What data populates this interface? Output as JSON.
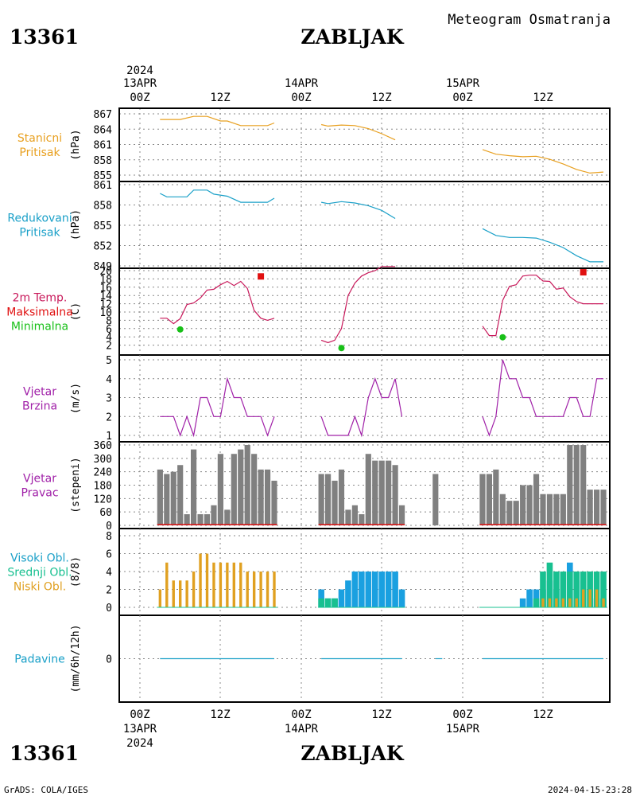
{
  "header": {
    "station_id": "13361",
    "station_name": "ZABLJAK",
    "product_title": "Meteogram Osmatranja"
  },
  "footer": {
    "station_id": "13361",
    "station_name": "ZABLJAK",
    "credit": "GrADS: COLA/IGES",
    "timestamp": "2024-04-15-23:28"
  },
  "time_axis": {
    "year": "2024",
    "day_labels": [
      "13APR",
      "14APR",
      "15APR"
    ],
    "hour_labels": [
      "00Z",
      "12Z",
      "00Z",
      "12Z",
      "00Z",
      "12Z"
    ],
    "hours_start": 0,
    "hours_end": 70
  },
  "chart_data": [
    {
      "id": "station_pressure",
      "type": "line",
      "labels": [
        "Stanicni",
        "Pritisak"
      ],
      "label_colors": [
        "#e8a020",
        "#e8a020"
      ],
      "ylabel": "(hPa)",
      "ylim": [
        855,
        867
      ],
      "yticks": [
        855,
        858,
        861,
        864,
        867
      ],
      "color": "#e8a020",
      "segments": [
        {
          "x": [
            3,
            6,
            8,
            10,
            12,
            13,
            15,
            17,
            19,
            20
          ],
          "y": [
            865.9,
            865.9,
            866.5,
            866.5,
            865.6,
            865.6,
            864.7,
            864.7,
            864.7,
            865.2
          ]
        },
        {
          "x": [
            27,
            28,
            30,
            32,
            34,
            36,
            38
          ],
          "y": [
            864.9,
            864.6,
            864.8,
            864.7,
            864.1,
            863.1,
            861.9
          ]
        },
        {
          "x": [
            51,
            53,
            55,
            57,
            59,
            61,
            63,
            65,
            67,
            69
          ],
          "y": [
            860.0,
            859.1,
            858.8,
            858.6,
            858.7,
            858.1,
            857.2,
            856.1,
            855.4,
            855.6
          ]
        }
      ]
    },
    {
      "id": "msl_pressure",
      "type": "line",
      "labels": [
        "Redukovani",
        "Pritisak"
      ],
      "label_colors": [
        "#1aa0c8",
        "#1aa0c8"
      ],
      "ylabel": "(hPa)",
      "ylim": [
        849,
        861
      ],
      "yticks": [
        849,
        852,
        855,
        858,
        861
      ],
      "color": "#1aa0c8",
      "segments": [
        {
          "x": [
            3,
            4,
            7,
            8,
            10,
            11,
            13,
            15,
            17,
            19,
            20
          ],
          "y": [
            859.7,
            859.2,
            859.2,
            860.2,
            860.2,
            859.6,
            859.3,
            858.4,
            858.4,
            858.4,
            859.0
          ]
        },
        {
          "x": [
            27,
            28,
            30,
            32,
            34,
            36,
            38
          ],
          "y": [
            858.4,
            858.2,
            858.5,
            858.3,
            857.9,
            857.2,
            856.0
          ]
        },
        {
          "x": [
            51,
            53,
            55,
            57,
            59,
            61,
            63,
            65,
            67,
            69
          ],
          "y": [
            854.5,
            853.5,
            853.2,
            853.2,
            853.1,
            852.5,
            851.7,
            850.5,
            849.6,
            849.6
          ]
        }
      ]
    },
    {
      "id": "temperature",
      "type": "line",
      "labels": [
        "2m Temp.",
        "Maksimalna",
        "Minimalna"
      ],
      "label_colors": [
        "#c8185a",
        "#e01010",
        "#18c018"
      ],
      "ylabel": "(C)",
      "ylim": [
        0,
        20
      ],
      "yticks": [
        2,
        4,
        6,
        8,
        10,
        12,
        14,
        16,
        18,
        20
      ],
      "color": "#c8185a",
      "segments": [
        {
          "x": [
            3,
            4,
            5,
            6,
            7,
            8,
            9,
            10,
            11,
            12,
            13,
            14,
            15,
            16,
            17,
            18,
            19,
            20
          ],
          "y": [
            8.5,
            8.5,
            7.2,
            8.4,
            11.8,
            12.2,
            13.4,
            15.3,
            15.5,
            16.6,
            17.4,
            16.4,
            17.4,
            15.7,
            10.4,
            8.5,
            8.0,
            8.5
          ]
        },
        {
          "x": [
            27,
            28,
            29,
            30,
            31,
            32,
            33,
            34,
            35,
            36,
            37,
            38
          ],
          "y": [
            3.2,
            2.6,
            3.2,
            6.0,
            14.0,
            17.0,
            18.7,
            19.5,
            20.0,
            21.0,
            21.0,
            21.0
          ]
        },
        {
          "x": [
            51,
            52,
            53,
            54,
            55,
            56,
            57,
            58,
            59,
            60,
            61,
            62,
            63,
            64,
            65,
            66,
            67,
            68,
            69
          ],
          "y": [
            6.6,
            4.3,
            4.3,
            12.8,
            16.2,
            16.6,
            18.7,
            18.9,
            18.9,
            17.5,
            17.4,
            15.5,
            15.8,
            13.7,
            12.5,
            12.0,
            12.0,
            12.0,
            12.0
          ]
        }
      ],
      "max_points": {
        "x": [
          18,
          66
        ],
        "y": [
          18.6,
          19.6
        ],
        "color": "#e01010"
      },
      "min_points": {
        "x": [
          6,
          30,
          54
        ],
        "y": [
          5.8,
          1.3,
          3.9
        ],
        "color": "#18c018"
      }
    },
    {
      "id": "wind_speed",
      "type": "line",
      "labels": [
        "Vjetar",
        "Brzina"
      ],
      "label_colors": [
        "#a020a8",
        "#a020a8"
      ],
      "ylabel": "(m/s)",
      "ylim": [
        1,
        5
      ],
      "yticks": [
        1,
        2,
        3,
        4,
        5
      ],
      "color": "#a020a8",
      "segments": [
        {
          "x": [
            3,
            4,
            5,
            6,
            7,
            8,
            9,
            10,
            11,
            12,
            13,
            14,
            15,
            16,
            17,
            18,
            19,
            20
          ],
          "y": [
            2,
            2,
            2,
            1,
            2,
            1,
            3,
            3,
            2,
            2,
            4,
            3,
            3,
            2,
            2,
            2,
            1,
            2
          ]
        },
        {
          "x": [
            27,
            28,
            29,
            30,
            31,
            32,
            33,
            34,
            35,
            36,
            37,
            38
          ],
          "y": [
            2,
            1,
            1,
            1,
            1,
            2,
            1,
            3,
            4,
            3,
            3,
            4
          ]
        },
        {
          "x": [
            38,
            39
          ],
          "y": [
            4,
            2
          ]
        },
        {
          "x": [
            51,
            52,
            53,
            54,
            55,
            56,
            57,
            58,
            59,
            60,
            61,
            62,
            63,
            64,
            65,
            66,
            67,
            68,
            69
          ],
          "y": [
            2,
            1,
            2,
            5,
            4,
            4,
            3,
            3,
            2,
            2,
            2,
            2,
            2,
            3,
            3,
            2,
            2,
            4,
            4
          ]
        }
      ]
    },
    {
      "id": "wind_direction",
      "type": "bar",
      "labels": [
        "Vjetar",
        "Pravac"
      ],
      "label_colors": [
        "#a020a8",
        "#a020a8"
      ],
      "ylabel": "(stepeni)",
      "ylim": [
        0,
        360
      ],
      "yticks": [
        0,
        60,
        120,
        180,
        240,
        300,
        360
      ],
      "color": "#808080",
      "baseline_color": "#e01010",
      "x": [
        3,
        4,
        5,
        6,
        7,
        8,
        9,
        10,
        11,
        12,
        13,
        14,
        15,
        16,
        17,
        18,
        19,
        20,
        27,
        28,
        29,
        30,
        31,
        32,
        33,
        34,
        35,
        36,
        37,
        38,
        39,
        44,
        51,
        52,
        53,
        54,
        55,
        56,
        57,
        58,
        59,
        60,
        61,
        62,
        63,
        64,
        65,
        66,
        67,
        68,
        69
      ],
      "values": [
        250,
        230,
        240,
        270,
        50,
        340,
        50,
        50,
        90,
        320,
        70,
        320,
        340,
        360,
        320,
        250,
        250,
        200,
        230,
        230,
        200,
        250,
        70,
        90,
        50,
        320,
        290,
        290,
        290,
        270,
        90,
        230,
        230,
        230,
        250,
        140,
        110,
        110,
        180,
        180,
        230,
        140,
        140,
        140,
        140,
        360,
        360,
        360,
        160,
        160,
        160
      ],
      "calm_baseline": [
        [
          3,
          20
        ],
        [
          27,
          39
        ],
        [
          51,
          69
        ]
      ]
    },
    {
      "id": "cloud_cover",
      "type": "bar",
      "labels": [
        "Visoki Obl.",
        "Srednji Obl.",
        "Niski Obl."
      ],
      "label_colors": [
        "#1aa0c8",
        "#18c090",
        "#e0a020"
      ],
      "ylabel": "(8/8)",
      "ylim": [
        0,
        8
      ],
      "yticks": [
        0,
        2,
        4,
        6,
        8
      ],
      "series": [
        {
          "name": "Visoki Obl.",
          "color": "#1aa0e0",
          "x": [
            27,
            28,
            29,
            30,
            31,
            32,
            33,
            34,
            35,
            36,
            37,
            38,
            39,
            57,
            58,
            59,
            60,
            61,
            62,
            63,
            64,
            65,
            66,
            67,
            68,
            69
          ],
          "values": [
            2,
            1,
            1,
            2,
            3,
            4,
            4,
            4,
            4,
            4,
            4,
            4,
            2,
            1,
            2,
            2,
            2,
            3,
            2,
            4,
            5,
            4,
            3,
            2,
            1,
            1
          ]
        },
        {
          "name": "Srednji Obl.",
          "color": "#18c090",
          "x": [
            27,
            28,
            29,
            59,
            60,
            61,
            62,
            63,
            64,
            65,
            66,
            67,
            68,
            69
          ],
          "values": [
            1,
            1,
            1,
            1,
            4,
            5,
            4,
            4,
            4,
            4,
            4,
            4,
            4,
            4
          ]
        },
        {
          "name": "Niski Obl.",
          "color": "#e0a020",
          "x": [
            3,
            4,
            5,
            6,
            7,
            8,
            9,
            10,
            11,
            12,
            13,
            14,
            15,
            16,
            17,
            18,
            19,
            20,
            60,
            61,
            62,
            63,
            64,
            65,
            66,
            67,
            68,
            69
          ],
          "values": [
            2,
            5,
            3,
            3,
            3,
            4,
            6,
            6,
            5,
            5,
            5,
            5,
            5,
            4,
            4,
            4,
            4,
            4,
            1,
            1,
            1,
            1,
            1,
            1,
            2,
            2,
            2,
            1
          ]
        }
      ]
    },
    {
      "id": "precipitation",
      "type": "line",
      "labels": [
        "Padavine"
      ],
      "label_colors": [
        "#1aa0c8"
      ],
      "ylabel": "(mm/6h/12h)",
      "yticks": [
        0
      ],
      "color": "#1aa0c8",
      "segments": [
        {
          "x": [
            3,
            20
          ],
          "y": [
            0,
            0
          ]
        },
        {
          "x": [
            27,
            39
          ],
          "y": [
            0,
            0
          ]
        },
        {
          "x": [
            44,
            45
          ],
          "y": [
            0,
            0
          ]
        },
        {
          "x": [
            51,
            69
          ],
          "y": [
            0,
            0
          ]
        }
      ]
    }
  ]
}
